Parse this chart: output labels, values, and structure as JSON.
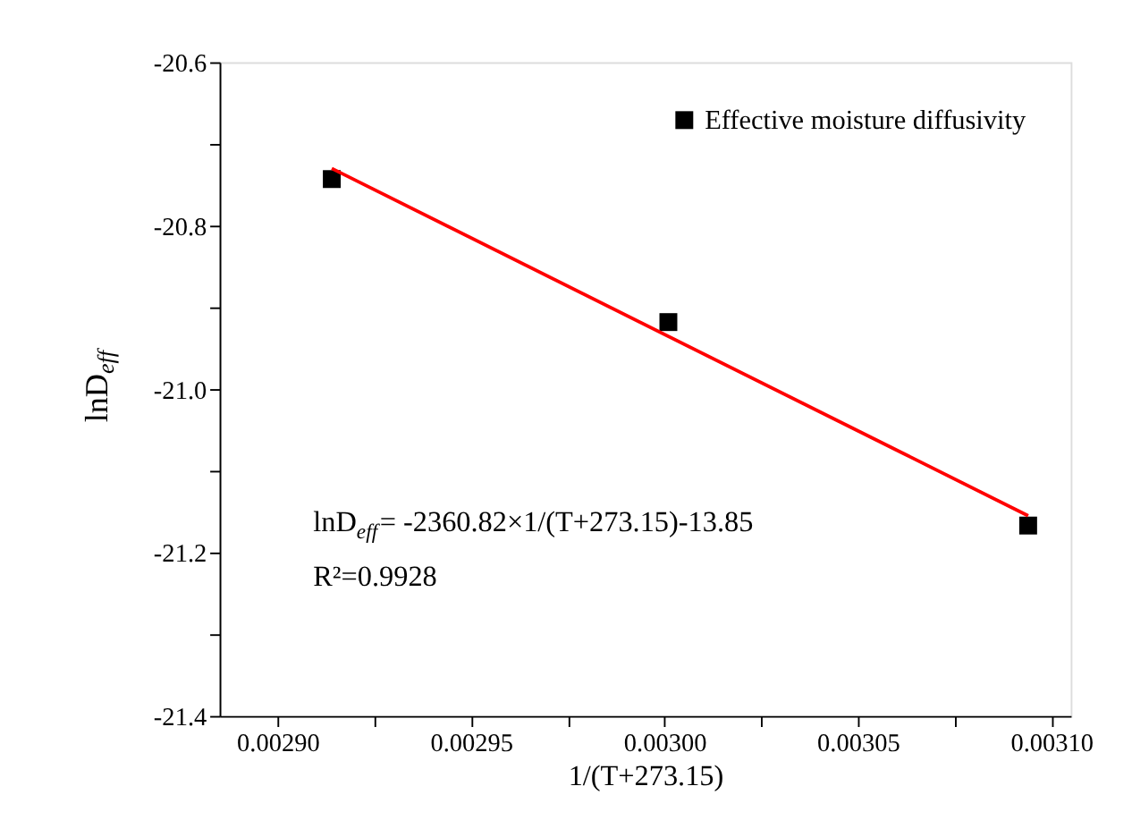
{
  "chart_data": {
    "type": "scatter",
    "xlabel": "1/(T+273.15)",
    "ylabel": "lnD$_{eff}$",
    "x": [
      0.002914,
      0.003001,
      0.003094
    ],
    "series": [
      {
        "name": "Effective moisture diffusivity",
        "color": "#000000",
        "marker": "square",
        "values": [
          -20.743,
          -20.918,
          -21.167
        ]
      },
      {
        "color": "#ff0000",
        "type": "line",
        "line_style": "solid",
        "marker": "none",
        "x": [
          0.002914,
          0.003094
        ],
        "values": [
          -20.73,
          -21.155
        ]
      }
    ],
    "xlim": [
      0.002885,
      0.003105
    ],
    "xticks": [
      {
        "value": 0.0029,
        "label": "0.00290"
      },
      {
        "value": 0.002925,
        "label": null
      },
      {
        "value": 0.00295,
        "label": "0.00295"
      },
      {
        "value": 0.002975,
        "label": null
      },
      {
        "value": 0.003,
        "label": "0.00300"
      },
      {
        "value": 0.003025,
        "label": null
      },
      {
        "value": 0.00305,
        "label": "0.00305"
      },
      {
        "value": 0.003075,
        "label": null
      },
      {
        "value": 0.0031,
        "label": "0.00310"
      }
    ],
    "ylim": [
      -21.4,
      -20.6
    ],
    "yticks": [
      {
        "value": -21.4,
        "label": "-21.4"
      },
      {
        "value": -21.3,
        "label": null
      },
      {
        "value": -21.2,
        "label": "-21.2"
      },
      {
        "value": -21.1,
        "label": null
      },
      {
        "value": -21.0,
        "label": "-21.0"
      },
      {
        "value": -20.9,
        "label": null
      },
      {
        "value": -20.8,
        "label": "-20.8"
      },
      {
        "value": -20.7,
        "label": null
      },
      {
        "value": -20.6,
        "label": "-20.6"
      }
    ],
    "annotations": [
      "lnD$_{eff}$= -2360.82×1/(T+273.15)-13.85",
      "R²=0.9928"
    ],
    "legend": "top right",
    "grid": false
  }
}
